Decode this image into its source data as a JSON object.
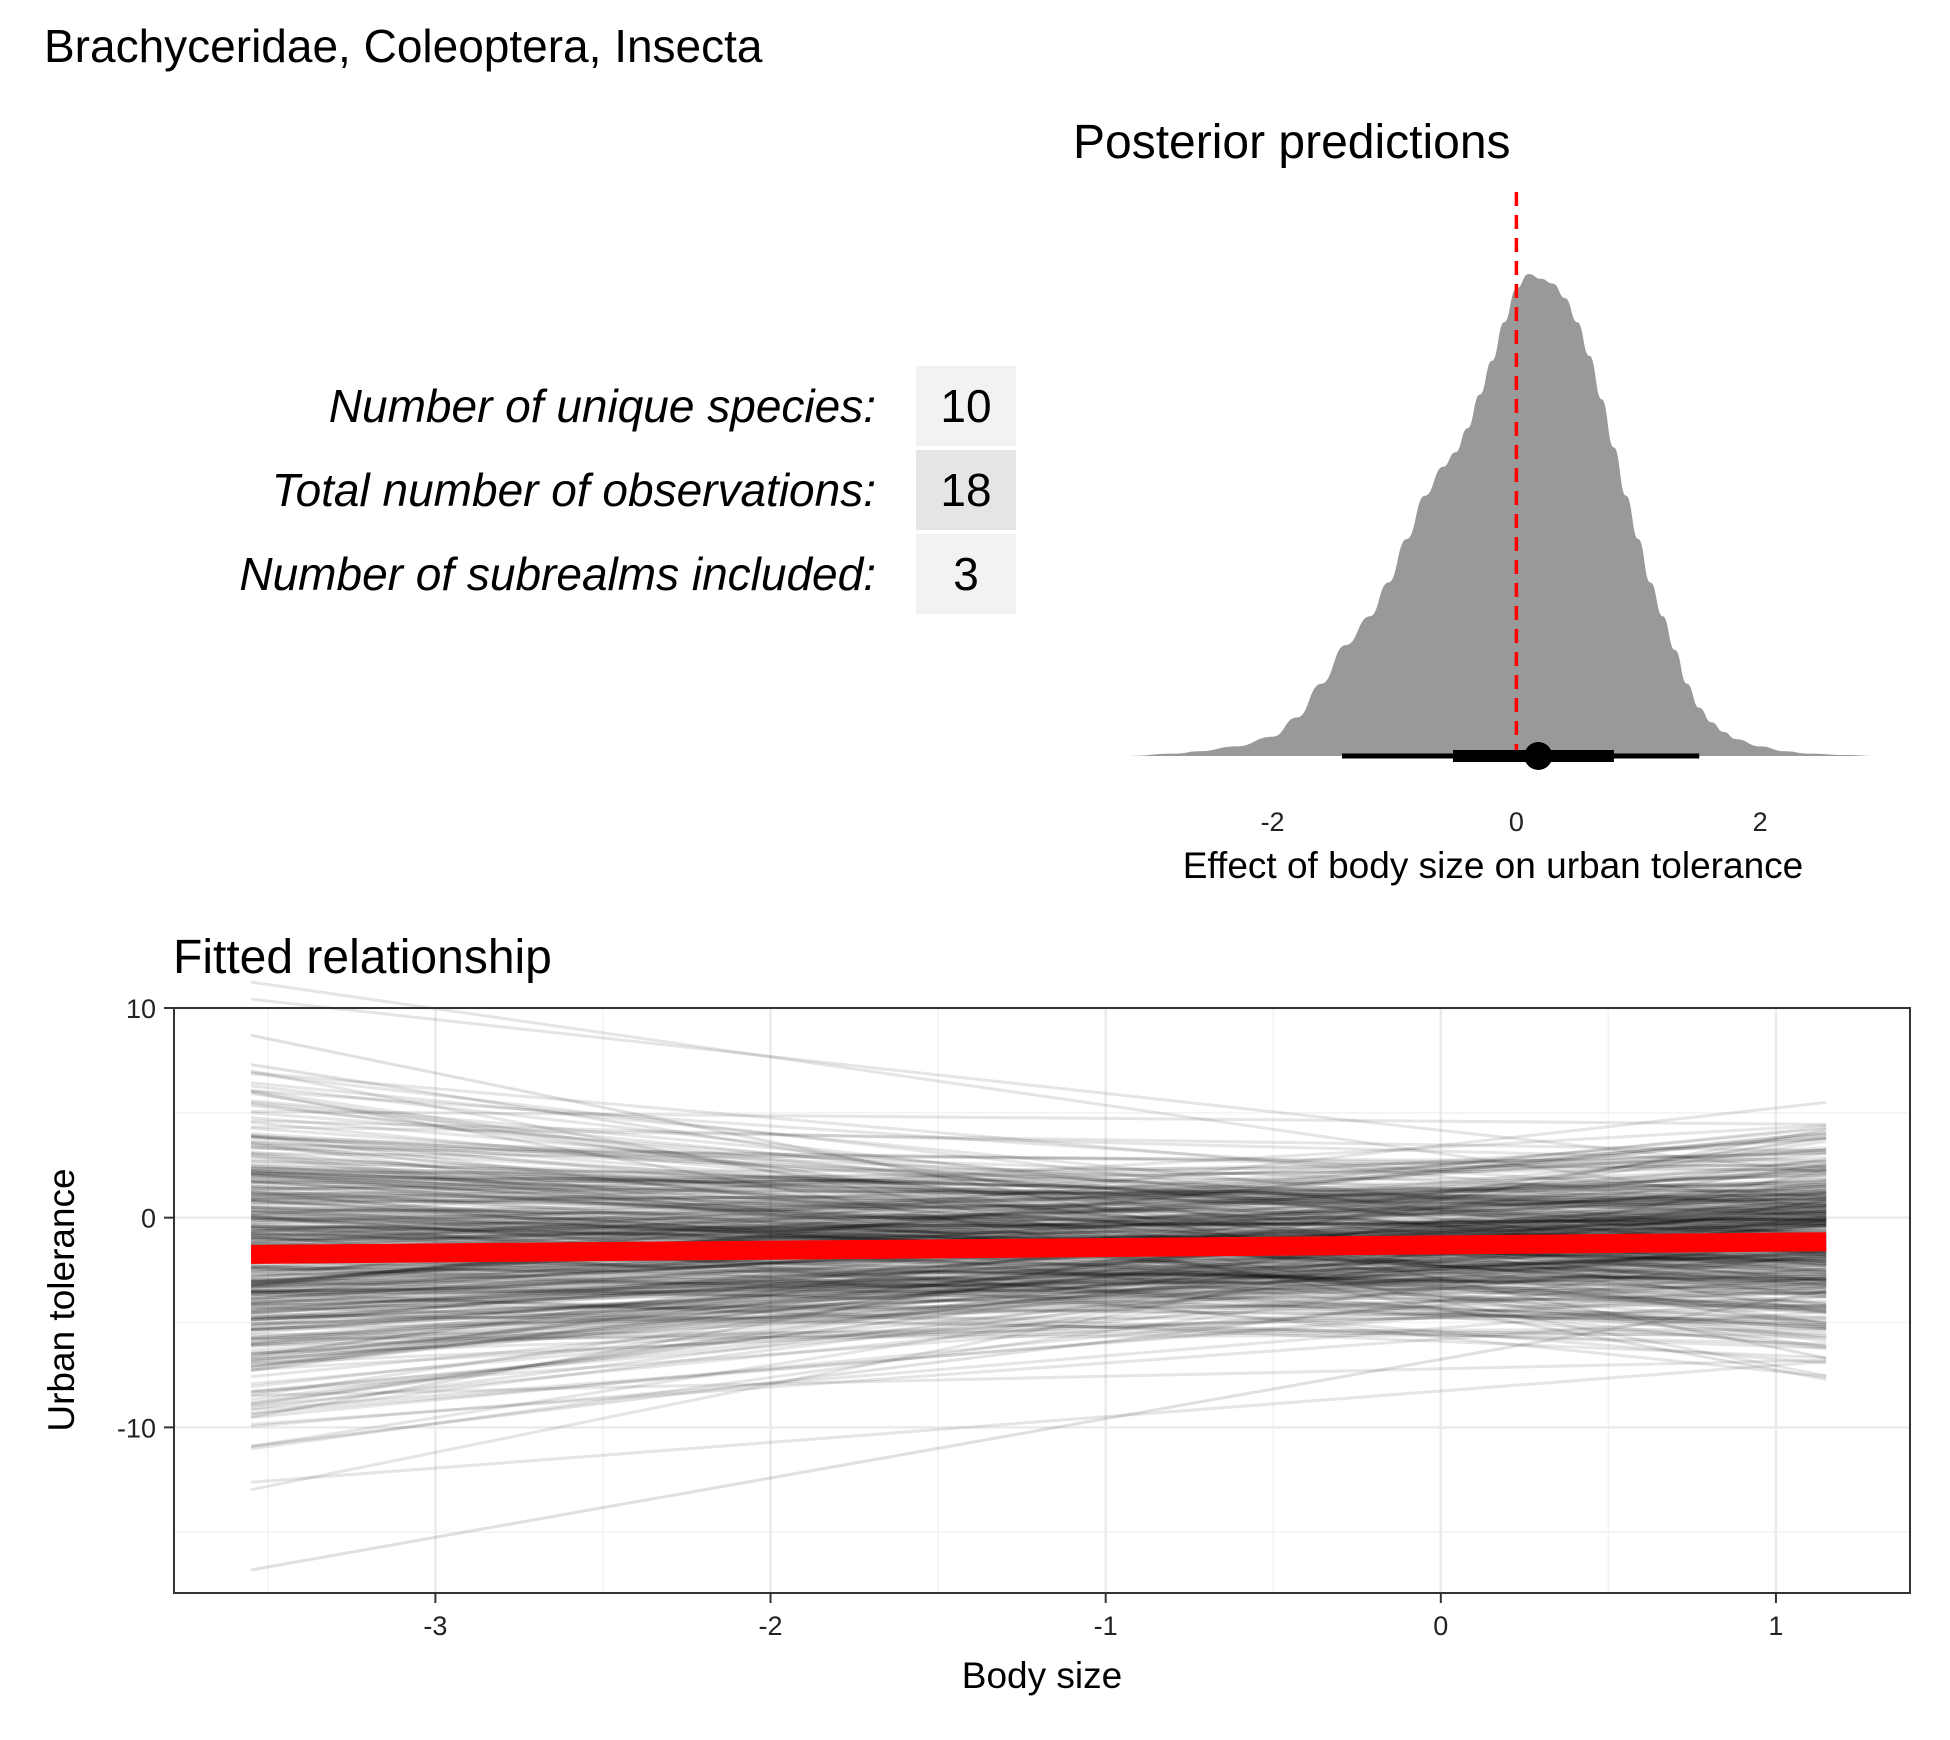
{
  "title": "Brachyceridae, Coleoptera, Insecta",
  "stats": [
    {
      "label": "Number of unique species:",
      "value": "10"
    },
    {
      "label": "Total number of observations:",
      "value": "18"
    },
    {
      "label": "Number of subrealms included:",
      "value": "3"
    }
  ],
  "colors": {
    "density_fill": "#999999",
    "reference_line": "#ff0000",
    "fitted_line": "#ff0000",
    "draws": "#000000",
    "panel_border": "#333333",
    "grid": "#ebebeb",
    "stat_box_light": "#f2f2f2",
    "stat_box_dark": "#e5e5e5"
  },
  "chart_data": [
    {
      "type": "area",
      "title": "Posterior predictions",
      "xlabel": "Effect of body size on urban tolerance",
      "ylabel": "",
      "xlim": [
        -3.35,
        2.95
      ],
      "xticks": [
        "-2",
        "0",
        "2"
      ],
      "xtick_values": [
        -2,
        0,
        2
      ],
      "grid": false,
      "density": {
        "x": [
          -3.2,
          -2.8,
          -2.6,
          -2.3,
          -2.0,
          -1.8,
          -1.6,
          -1.4,
          -1.2,
          -1.05,
          -0.9,
          -0.75,
          -0.6,
          -0.5,
          -0.4,
          -0.3,
          -0.2,
          -0.1,
          0.0,
          0.1,
          0.2,
          0.3,
          0.4,
          0.5,
          0.6,
          0.7,
          0.8,
          0.9,
          1.0,
          1.1,
          1.2,
          1.3,
          1.4,
          1.5,
          1.6,
          1.7,
          1.8,
          2.0,
          2.2,
          2.4,
          2.7,
          2.95
        ],
        "density": [
          0.0,
          0.005,
          0.01,
          0.02,
          0.04,
          0.08,
          0.15,
          0.23,
          0.29,
          0.36,
          0.45,
          0.54,
          0.6,
          0.63,
          0.68,
          0.75,
          0.82,
          0.9,
          0.97,
          1.0,
          0.99,
          0.98,
          0.95,
          0.9,
          0.83,
          0.74,
          0.64,
          0.54,
          0.45,
          0.36,
          0.29,
          0.22,
          0.15,
          0.1,
          0.07,
          0.05,
          0.035,
          0.02,
          0.01,
          0.005,
          0.002,
          0.0
        ]
      },
      "reference_line_x": 0,
      "point_estimate": 0.18,
      "interval_66": [
        -0.52,
        0.8
      ],
      "interval_95": [
        -1.43,
        1.5
      ]
    },
    {
      "type": "line",
      "title": "Fitted relationship",
      "xlabel": "Body size",
      "ylabel": "Urban tolerance",
      "xlim": [
        -3.78,
        1.4
      ],
      "ylim": [
        -17.9,
        10.0
      ],
      "xticks": [
        "-3",
        "-2",
        "-1",
        "0",
        "1"
      ],
      "xtick_values": [
        -3,
        -2,
        -1,
        0,
        1
      ],
      "yticks": [
        "-10",
        "0",
        "10"
      ],
      "ytick_values": [
        -10,
        0,
        10
      ],
      "grid": true,
      "x_range": [
        -3.55,
        1.15
      ],
      "fitted_line": {
        "x": [
          -3.55,
          1.15
        ],
        "y": [
          -1.75,
          -1.15
        ]
      },
      "draws": {
        "count": 400,
        "intercept_center": -1.2,
        "intercept_spread": 2.1,
        "slope_center": 0.13,
        "slope_spread": 0.95
      },
      "extreme_draws": [
        {
          "y_start": 8.7,
          "y_end": -6.7
        },
        {
          "y_start": 7.3,
          "y_end": -4.5
        },
        {
          "y_start": -16.8,
          "y_end": -3.5
        },
        {
          "y_start": -10.9,
          "y_end": -1.7
        },
        {
          "y_start": -9.5,
          "y_end": 4.2
        },
        {
          "y_start": 6.0,
          "y_end": -7.7
        }
      ]
    }
  ]
}
